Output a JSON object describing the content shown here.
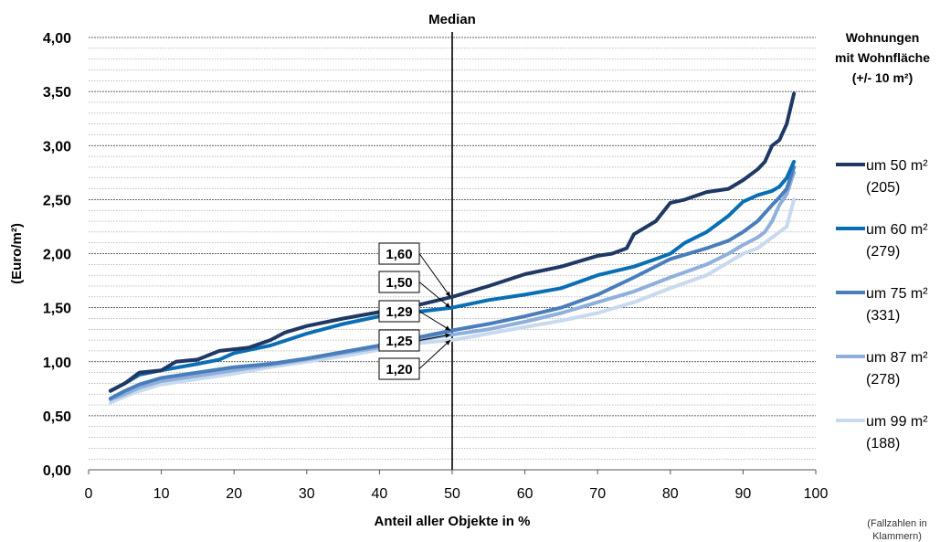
{
  "chart_data": {
    "type": "line",
    "title": "Median",
    "xlabel": "Anteil aller Objekte in %",
    "ylabel": "(Euro/m²)",
    "xlim": [
      0,
      100
    ],
    "ylim": [
      0,
      4
    ],
    "x_ticks": [
      "0",
      "10",
      "20",
      "30",
      "40",
      "50",
      "60",
      "70",
      "80",
      "90",
      "100"
    ],
    "y_ticks": [
      "0,00",
      "0,50",
      "1,00",
      "1,50",
      "2,00",
      "2,50",
      "3,00",
      "3,50",
      "4,00"
    ],
    "grid": "horizontal",
    "median_x": 50,
    "legend_title": [
      "Wohnungen",
      "mit Wohnfläche",
      "(+/- 10 m²)"
    ],
    "legend_note": [
      "(Fallzahlen in",
      "Klammern)"
    ],
    "legend_position": "right",
    "series": [
      {
        "name": "um 50 m²",
        "count": "(205)",
        "color": "#1f3864",
        "x": [
          3,
          5,
          7,
          10,
          12,
          15,
          18,
          22,
          25,
          27,
          30,
          35,
          40,
          45,
          50,
          55,
          60,
          65,
          70,
          72,
          74,
          75,
          78,
          80,
          82,
          85,
          88,
          90,
          92,
          93,
          94,
          95,
          96,
          97
        ],
        "y": [
          0.73,
          0.8,
          0.9,
          0.92,
          1.0,
          1.02,
          1.1,
          1.13,
          1.2,
          1.27,
          1.33,
          1.4,
          1.46,
          1.52,
          1.6,
          1.7,
          1.81,
          1.88,
          1.98,
          2.0,
          2.05,
          2.18,
          2.3,
          2.47,
          2.5,
          2.57,
          2.6,
          2.68,
          2.78,
          2.85,
          3.0,
          3.05,
          3.2,
          3.48
        ]
      },
      {
        "name": "um 60 m²",
        "count": "(279)",
        "color": "#0a6eb4",
        "x": [
          3,
          5,
          7,
          10,
          15,
          18,
          20,
          25,
          30,
          35,
          40,
          45,
          50,
          55,
          60,
          65,
          70,
          75,
          78,
          80,
          82,
          85,
          88,
          90,
          92,
          94,
          95,
          96,
          97
        ],
        "y": [
          0.73,
          0.8,
          0.88,
          0.92,
          0.98,
          1.02,
          1.08,
          1.15,
          1.26,
          1.35,
          1.42,
          1.46,
          1.5,
          1.57,
          1.62,
          1.68,
          1.8,
          1.88,
          1.95,
          2.0,
          2.1,
          2.2,
          2.35,
          2.48,
          2.54,
          2.58,
          2.62,
          2.7,
          2.85
        ]
      },
      {
        "name": "um 75 m²",
        "count": "(331)",
        "color": "#4a7ebb",
        "x": [
          3,
          5,
          7,
          10,
          15,
          20,
          25,
          30,
          35,
          40,
          45,
          50,
          55,
          60,
          65,
          70,
          75,
          80,
          85,
          88,
          90,
          92,
          94,
          95,
          96,
          97
        ],
        "y": [
          0.66,
          0.73,
          0.79,
          0.85,
          0.9,
          0.95,
          0.98,
          1.03,
          1.09,
          1.15,
          1.22,
          1.29,
          1.35,
          1.42,
          1.5,
          1.62,
          1.78,
          1.95,
          2.05,
          2.12,
          2.2,
          2.3,
          2.45,
          2.52,
          2.6,
          2.8
        ]
      },
      {
        "name": "um 87 m²",
        "count": "(278)",
        "color": "#8fb0dc",
        "x": [
          3,
          5,
          7,
          10,
          15,
          20,
          25,
          30,
          35,
          40,
          45,
          50,
          55,
          60,
          65,
          70,
          75,
          80,
          85,
          88,
          90,
          92,
          93,
          94,
          95,
          96,
          97
        ],
        "y": [
          0.65,
          0.7,
          0.76,
          0.82,
          0.87,
          0.92,
          0.97,
          1.02,
          1.08,
          1.13,
          1.2,
          1.25,
          1.3,
          1.37,
          1.45,
          1.55,
          1.65,
          1.78,
          1.9,
          2.0,
          2.08,
          2.15,
          2.2,
          2.3,
          2.45,
          2.55,
          2.75
        ]
      },
      {
        "name": "um 99 m²",
        "count": "(188)",
        "color": "#c9d9ee",
        "x": [
          3,
          5,
          7,
          10,
          15,
          20,
          25,
          30,
          35,
          40,
          45,
          50,
          55,
          60,
          65,
          70,
          75,
          80,
          85,
          88,
          90,
          92,
          93,
          94,
          95,
          96,
          97
        ],
        "y": [
          0.62,
          0.68,
          0.73,
          0.79,
          0.84,
          0.89,
          0.95,
          1.0,
          1.05,
          1.11,
          1.17,
          1.2,
          1.26,
          1.32,
          1.38,
          1.45,
          1.55,
          1.68,
          1.8,
          1.92,
          2.0,
          2.05,
          2.1,
          2.15,
          2.2,
          2.25,
          2.5
        ]
      }
    ],
    "annotations": [
      {
        "text": "1,60",
        "value": 1.6
      },
      {
        "text": "1,50",
        "value": 1.5
      },
      {
        "text": "1,29",
        "value": 1.29
      },
      {
        "text": "1,25",
        "value": 1.25
      },
      {
        "text": "1,20",
        "value": 1.2
      }
    ]
  }
}
